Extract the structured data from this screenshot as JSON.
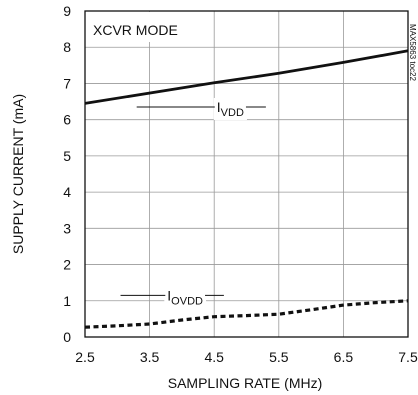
{
  "chart_data": {
    "type": "line",
    "xlabel": "SAMPLING RATE (MHz)",
    "ylabel": "SUPPLY CURRENT (mA)",
    "xlim": [
      2.5,
      7.5
    ],
    "ylim": [
      0,
      9
    ],
    "x_ticks": [
      "2.5",
      "3.5",
      "4.5",
      "5.5",
      "6.5",
      "7.5"
    ],
    "y_ticks": [
      "0",
      "1",
      "2",
      "3",
      "4",
      "5",
      "6",
      "7",
      "8",
      "9"
    ],
    "grid": true,
    "mode_label": "XCVR MODE",
    "watermark": "MAX5863 toc22",
    "series": [
      {
        "name": "IVDD",
        "label_main": "I",
        "label_sub": "VDD",
        "style": "solid",
        "x": [
          2.5,
          4.5,
          5.5,
          6.5,
          7.5
        ],
        "y": [
          6.45,
          7.02,
          7.28,
          7.58,
          7.9
        ]
      },
      {
        "name": "IOVDD",
        "label_main": "I",
        "label_sub": "OVDD",
        "style": "dashed",
        "x": [
          2.5,
          3.0,
          3.5,
          4.0,
          4.5,
          5.0,
          5.5,
          6.0,
          6.5,
          7.0,
          7.5
        ],
        "y": [
          0.27,
          0.31,
          0.36,
          0.47,
          0.56,
          0.59,
          0.63,
          0.75,
          0.88,
          0.95,
          1.0
        ]
      }
    ]
  }
}
